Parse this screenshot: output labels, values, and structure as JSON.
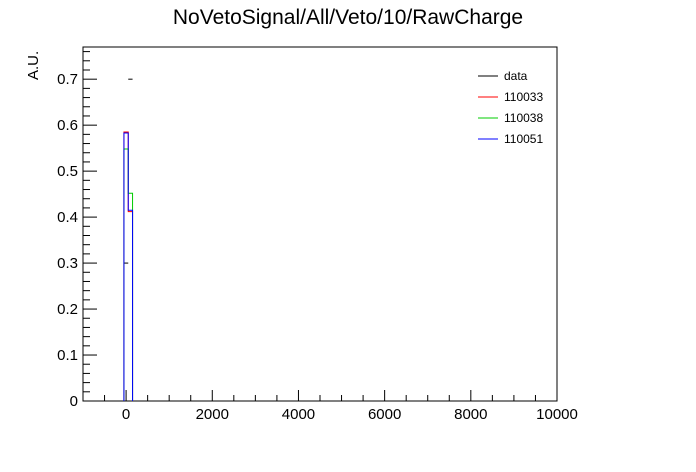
{
  "chart_data": {
    "type": "histogram",
    "title": "NoVetoSignal/All/Veto/10/RawCharge",
    "xlabel": "",
    "ylabel": "A.U.",
    "xlim": [
      -1000,
      10000
    ],
    "ylim": [
      0,
      0.77
    ],
    "x_ticks": [
      0,
      2000,
      4000,
      6000,
      8000,
      10000
    ],
    "x_tick_labels": [
      "0",
      "2000",
      "4000",
      "6000",
      "8000",
      "10000"
    ],
    "y_ticks": [
      0,
      0.1,
      0.2,
      0.3,
      0.4,
      0.5,
      0.6,
      0.7
    ],
    "y_tick_labels": [
      "0",
      "0.1",
      "0.2",
      "0.3",
      "0.4",
      "0.5",
      "0.6",
      "0.7"
    ],
    "bin_width": 100,
    "grid": false,
    "legend_position": "top-right",
    "series": [
      {
        "name": "data",
        "color": "#000000",
        "style": "points",
        "points": [
          {
            "x": 0,
            "y": 0.0,
            "xerr": 50
          },
          {
            "x": 0,
            "y": 0.3,
            "xerr": 50
          },
          {
            "x": 100,
            "y": 0.7,
            "xerr": 50
          }
        ]
      },
      {
        "name": "110033",
        "color": "#ff0000",
        "style": "step",
        "bins": [
          {
            "x0": -50,
            "x1": 50,
            "y": 0.585
          },
          {
            "x0": 50,
            "x1": 150,
            "y": 0.412
          }
        ]
      },
      {
        "name": "110038",
        "color": "#00cc00",
        "style": "step",
        "bins": [
          {
            "x0": -50,
            "x1": 50,
            "y": 0.548
          },
          {
            "x0": 50,
            "x1": 150,
            "y": 0.452
          }
        ]
      },
      {
        "name": "110051",
        "color": "#0000ff",
        "style": "step",
        "bins": [
          {
            "x0": -50,
            "x1": 50,
            "y": 0.583
          },
          {
            "x0": 50,
            "x1": 150,
            "y": 0.415
          }
        ]
      }
    ]
  }
}
